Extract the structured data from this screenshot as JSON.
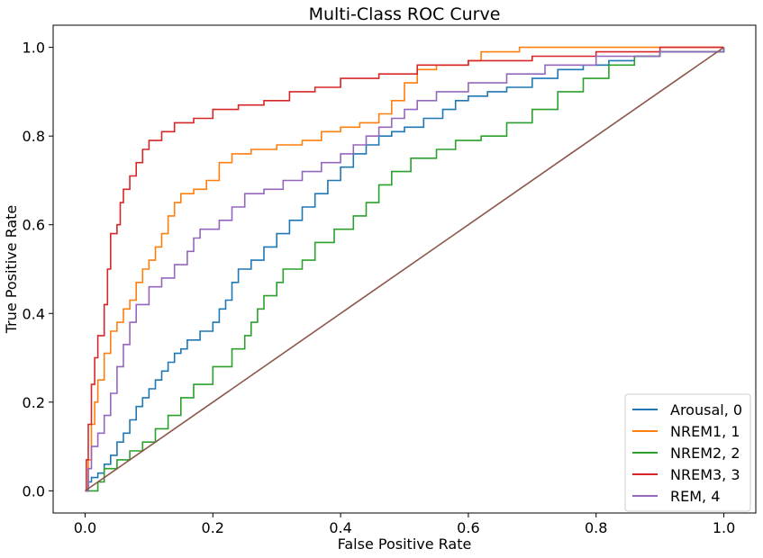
{
  "chart_data": {
    "type": "line",
    "title": "Multi-Class ROC Curve",
    "xlabel": "False Positive Rate",
    "ylabel": "True Positive Rate",
    "xlim": [
      -0.05,
      1.05
    ],
    "ylim": [
      -0.05,
      1.05
    ],
    "xticks": [
      "0.0",
      "0.2",
      "0.4",
      "0.6",
      "0.8",
      "1.0"
    ],
    "yticks": [
      "0.0",
      "0.2",
      "0.4",
      "0.6",
      "0.8",
      "1.0"
    ],
    "grid": false,
    "legend_position": "lower right",
    "series": [
      {
        "name": "Arousal, 0",
        "color": "#1f77b4",
        "points": [
          [
            0,
            0
          ],
          [
            0.005,
            0.02
          ],
          [
            0.01,
            0.03
          ],
          [
            0.02,
            0.04
          ],
          [
            0.03,
            0.06
          ],
          [
            0.04,
            0.08
          ],
          [
            0.05,
            0.11
          ],
          [
            0.06,
            0.13
          ],
          [
            0.07,
            0.16
          ],
          [
            0.08,
            0.19
          ],
          [
            0.09,
            0.21
          ],
          [
            0.1,
            0.23
          ],
          [
            0.11,
            0.25
          ],
          [
            0.12,
            0.27
          ],
          [
            0.13,
            0.29
          ],
          [
            0.14,
            0.31
          ],
          [
            0.15,
            0.32
          ],
          [
            0.16,
            0.34
          ],
          [
            0.18,
            0.36
          ],
          [
            0.2,
            0.38
          ],
          [
            0.21,
            0.41
          ],
          [
            0.22,
            0.43
          ],
          [
            0.23,
            0.47
          ],
          [
            0.24,
            0.5
          ],
          [
            0.26,
            0.52
          ],
          [
            0.28,
            0.55
          ],
          [
            0.3,
            0.58
          ],
          [
            0.32,
            0.61
          ],
          [
            0.34,
            0.64
          ],
          [
            0.36,
            0.67
          ],
          [
            0.38,
            0.7
          ],
          [
            0.4,
            0.73
          ],
          [
            0.42,
            0.76
          ],
          [
            0.44,
            0.78
          ],
          [
            0.46,
            0.8
          ],
          [
            0.48,
            0.81
          ],
          [
            0.5,
            0.82
          ],
          [
            0.53,
            0.84
          ],
          [
            0.56,
            0.86
          ],
          [
            0.58,
            0.88
          ],
          [
            0.6,
            0.89
          ],
          [
            0.63,
            0.9
          ],
          [
            0.66,
            0.91
          ],
          [
            0.7,
            0.93
          ],
          [
            0.74,
            0.95
          ],
          [
            0.78,
            0.96
          ],
          [
            0.82,
            0.97
          ],
          [
            0.86,
            0.98
          ],
          [
            0.9,
            0.99
          ],
          [
            1.0,
            1.0
          ]
        ]
      },
      {
        "name": "NREM1, 1",
        "color": "#ff7f0e",
        "points": [
          [
            0,
            0
          ],
          [
            0.005,
            0.07
          ],
          [
            0.01,
            0.15
          ],
          [
            0.015,
            0.2
          ],
          [
            0.02,
            0.25
          ],
          [
            0.03,
            0.31
          ],
          [
            0.04,
            0.36
          ],
          [
            0.05,
            0.38
          ],
          [
            0.06,
            0.41
          ],
          [
            0.07,
            0.43
          ],
          [
            0.08,
            0.47
          ],
          [
            0.09,
            0.5
          ],
          [
            0.1,
            0.52
          ],
          [
            0.11,
            0.55
          ],
          [
            0.12,
            0.58
          ],
          [
            0.13,
            0.62
          ],
          [
            0.14,
            0.65
          ],
          [
            0.15,
            0.67
          ],
          [
            0.17,
            0.68
          ],
          [
            0.19,
            0.7
          ],
          [
            0.21,
            0.74
          ],
          [
            0.23,
            0.76
          ],
          [
            0.26,
            0.77
          ],
          [
            0.3,
            0.78
          ],
          [
            0.34,
            0.79
          ],
          [
            0.37,
            0.81
          ],
          [
            0.4,
            0.82
          ],
          [
            0.43,
            0.83
          ],
          [
            0.46,
            0.85
          ],
          [
            0.48,
            0.88
          ],
          [
            0.5,
            0.92
          ],
          [
            0.52,
            0.95
          ],
          [
            0.55,
            0.96
          ],
          [
            0.6,
            0.97
          ],
          [
            0.62,
            0.99
          ],
          [
            0.68,
            1.0
          ],
          [
            1.0,
            1.0
          ]
        ]
      },
      {
        "name": "NREM2, 2",
        "color": "#2ca02c",
        "points": [
          [
            0,
            0
          ],
          [
            0.02,
            0.02
          ],
          [
            0.03,
            0.05
          ],
          [
            0.05,
            0.07
          ],
          [
            0.07,
            0.09
          ],
          [
            0.09,
            0.11
          ],
          [
            0.11,
            0.14
          ],
          [
            0.13,
            0.17
          ],
          [
            0.15,
            0.21
          ],
          [
            0.17,
            0.24
          ],
          [
            0.2,
            0.28
          ],
          [
            0.23,
            0.32
          ],
          [
            0.25,
            0.35
          ],
          [
            0.26,
            0.38
          ],
          [
            0.27,
            0.41
          ],
          [
            0.28,
            0.44
          ],
          [
            0.3,
            0.47
          ],
          [
            0.31,
            0.5
          ],
          [
            0.34,
            0.52
          ],
          [
            0.36,
            0.56
          ],
          [
            0.39,
            0.59
          ],
          [
            0.42,
            0.62
          ],
          [
            0.44,
            0.65
          ],
          [
            0.46,
            0.69
          ],
          [
            0.48,
            0.72
          ],
          [
            0.51,
            0.75
          ],
          [
            0.55,
            0.77
          ],
          [
            0.58,
            0.79
          ],
          [
            0.62,
            0.8
          ],
          [
            0.66,
            0.83
          ],
          [
            0.7,
            0.86
          ],
          [
            0.74,
            0.9
          ],
          [
            0.78,
            0.93
          ],
          [
            0.82,
            0.96
          ],
          [
            0.86,
            0.98
          ],
          [
            0.9,
            0.99
          ],
          [
            1.0,
            1.0
          ]
        ]
      },
      {
        "name": "NREM3, 3",
        "color": "#d62728",
        "points": [
          [
            0,
            0
          ],
          [
            0.002,
            0.07
          ],
          [
            0.005,
            0.15
          ],
          [
            0.01,
            0.24
          ],
          [
            0.015,
            0.3
          ],
          [
            0.02,
            0.35
          ],
          [
            0.03,
            0.42
          ],
          [
            0.035,
            0.5
          ],
          [
            0.04,
            0.58
          ],
          [
            0.05,
            0.6
          ],
          [
            0.055,
            0.65
          ],
          [
            0.06,
            0.68
          ],
          [
            0.07,
            0.71
          ],
          [
            0.08,
            0.74
          ],
          [
            0.09,
            0.77
          ],
          [
            0.1,
            0.79
          ],
          [
            0.12,
            0.81
          ],
          [
            0.14,
            0.83
          ],
          [
            0.17,
            0.84
          ],
          [
            0.2,
            0.86
          ],
          [
            0.24,
            0.87
          ],
          [
            0.28,
            0.88
          ],
          [
            0.32,
            0.9
          ],
          [
            0.36,
            0.91
          ],
          [
            0.4,
            0.93
          ],
          [
            0.46,
            0.94
          ],
          [
            0.52,
            0.96
          ],
          [
            0.6,
            0.97
          ],
          [
            0.7,
            0.98
          ],
          [
            0.8,
            0.99
          ],
          [
            0.9,
            1.0
          ],
          [
            1.0,
            1.0
          ]
        ]
      },
      {
        "name": "REM, 4",
        "color": "#9467bd",
        "points": [
          [
            0,
            0
          ],
          [
            0.005,
            0.05
          ],
          [
            0.01,
            0.1
          ],
          [
            0.02,
            0.13
          ],
          [
            0.03,
            0.17
          ],
          [
            0.04,
            0.22
          ],
          [
            0.05,
            0.28
          ],
          [
            0.06,
            0.33
          ],
          [
            0.07,
            0.38
          ],
          [
            0.08,
            0.42
          ],
          [
            0.1,
            0.46
          ],
          [
            0.12,
            0.48
          ],
          [
            0.14,
            0.51
          ],
          [
            0.16,
            0.54
          ],
          [
            0.17,
            0.57
          ],
          [
            0.18,
            0.59
          ],
          [
            0.21,
            0.61
          ],
          [
            0.23,
            0.64
          ],
          [
            0.25,
            0.67
          ],
          [
            0.28,
            0.68
          ],
          [
            0.31,
            0.7
          ],
          [
            0.34,
            0.72
          ],
          [
            0.37,
            0.74
          ],
          [
            0.4,
            0.76
          ],
          [
            0.42,
            0.78
          ],
          [
            0.44,
            0.8
          ],
          [
            0.46,
            0.82
          ],
          [
            0.48,
            0.84
          ],
          [
            0.5,
            0.86
          ],
          [
            0.52,
            0.88
          ],
          [
            0.55,
            0.9
          ],
          [
            0.6,
            0.92
          ],
          [
            0.66,
            0.94
          ],
          [
            0.72,
            0.96
          ],
          [
            0.8,
            0.98
          ],
          [
            0.9,
            0.99
          ],
          [
            1.0,
            1.0
          ]
        ]
      },
      {
        "name": "",
        "color": "#8c564b",
        "points": [
          [
            0,
            0
          ],
          [
            1.0,
            1.0
          ]
        ]
      }
    ]
  }
}
